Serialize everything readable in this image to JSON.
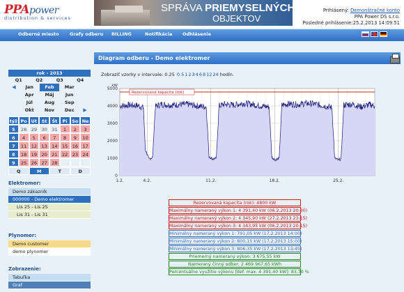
{
  "header": {
    "logo_brand": "PPA",
    "logo_suffix": "power",
    "logo_tagline": "distribution & services",
    "banner_line1_a": "SPRÁVA ",
    "banner_line1_b": "PRIEMYSELNÝCH",
    "banner_line2": "OBJEKTOV",
    "user_label": "Prihlásený:",
    "user_name": "Demonštračné konto",
    "company": "PPA Power DS s.r.o.",
    "last_login": "Posledné prihlásenie:25.2.2013 14:09:51"
  },
  "nav": {
    "items": [
      "Odberné miesto",
      "Grafy odberu",
      "BILLING",
      "Notifikácia",
      "Odhlásenie"
    ]
  },
  "calendar": {
    "year_label": "rok - 2013",
    "quarters": [
      "Q1",
      "Q2",
      "Q3",
      "Q4"
    ],
    "months": [
      [
        "Jan",
        "Feb",
        "Mar"
      ],
      [
        "Apr",
        "Máj",
        "Jun"
      ],
      [
        "Júl",
        "Aug",
        "Sep"
      ],
      [
        "Okt",
        "Nov",
        "Dec"
      ]
    ],
    "selected_month": "Feb",
    "day_headers": [
      "týž",
      "Po",
      "Ut",
      "St",
      "Št",
      "Pi",
      "So",
      "Ne"
    ],
    "weeks": [
      {
        "wk": "5",
        "days": [
          "28",
          "29",
          "30",
          "31",
          "1",
          "2",
          "3"
        ],
        "in": [
          false,
          false,
          false,
          false,
          true,
          true,
          true
        ]
      },
      {
        "wk": "6",
        "days": [
          "4",
          "5",
          "6",
          "7",
          "8",
          "9",
          "10"
        ],
        "in": [
          true,
          true,
          true,
          true,
          true,
          true,
          true
        ]
      },
      {
        "wk": "7",
        "days": [
          "11",
          "12",
          "13",
          "14",
          "15",
          "16",
          "17"
        ],
        "in": [
          true,
          true,
          true,
          true,
          true,
          true,
          true
        ]
      },
      {
        "wk": "8",
        "days": [
          "18",
          "19",
          "20",
          "21",
          "22",
          "23",
          "24"
        ],
        "in": [
          true,
          true,
          true,
          true,
          true,
          true,
          true
        ]
      },
      {
        "wk": "9",
        "days": [
          "25",
          "26",
          "27",
          "28",
          "",
          "",
          ""
        ],
        "in": [
          true,
          true,
          true,
          true,
          false,
          false,
          false
        ]
      }
    ],
    "view_tabs": [
      "Q",
      "M",
      "T",
      "D"
    ],
    "selected_view": "M"
  },
  "elektromer": {
    "title": "Elektromer:",
    "items": [
      "Demo zákazník",
      "000000 - Demo elektromer",
      "Lis 25 - Lis 25",
      "Lis 31 - Lis 31"
    ]
  },
  "plynomer": {
    "title": "Plynomer:",
    "items": [
      "Demo customer",
      "demo plynomer"
    ]
  },
  "zobrazenie": {
    "title": "Zobrazenie:",
    "items": [
      "Tabuľka",
      "Graf"
    ]
  },
  "main": {
    "title": "Diagram odberu - Demo elektromer",
    "interval_label": "Zobraziť vzorky v intervale: 0.25",
    "interval_links": [
      "0.5",
      "1",
      "2",
      "3",
      "4",
      "6",
      "8",
      "12",
      "24"
    ],
    "interval_unit": "hodín."
  },
  "chart_data": {
    "type": "area",
    "ylabel": "kW",
    "ylim": [
      0,
      5000
    ],
    "yticks": [
      0,
      1000,
      2000,
      3000,
      4000,
      5000
    ],
    "xtick_labels": [
      "1.2.",
      "4.2.",
      "11.2.",
      "18.2.",
      "25.2."
    ],
    "xtick_days": [
      1,
      4,
      11,
      18,
      25
    ],
    "xlim_days": [
      1,
      29
    ],
    "reference_line": {
      "label": "Rezervovaná kapacita (rok)",
      "value": 4800
    },
    "series_color": "#1a1a7a",
    "fill_color": "#d6d6f6",
    "profile_points": [
      [
        1.0,
        4000
      ],
      [
        2.0,
        4050
      ],
      [
        3.0,
        4020
      ],
      [
        3.6,
        3900
      ],
      [
        3.8,
        1500
      ],
      [
        4.2,
        950
      ],
      [
        4.6,
        1050
      ],
      [
        4.9,
        3950
      ],
      [
        5.5,
        4100
      ],
      [
        6.5,
        4050
      ],
      [
        7.5,
        4080
      ],
      [
        8.5,
        4100
      ],
      [
        9.5,
        4000
      ],
      [
        10.5,
        3950
      ],
      [
        10.8,
        1100
      ],
      [
        11.2,
        950
      ],
      [
        11.6,
        1000
      ],
      [
        11.9,
        4000
      ],
      [
        12.5,
        4100
      ],
      [
        13.5,
        4050
      ],
      [
        14.5,
        4150
      ],
      [
        15.5,
        4100
      ],
      [
        16.5,
        4000
      ],
      [
        17.4,
        3950
      ],
      [
        17.7,
        1050
      ],
      [
        18.1,
        900
      ],
      [
        18.5,
        1000
      ],
      [
        18.8,
        4050
      ],
      [
        19.5,
        4120
      ],
      [
        20.5,
        4080
      ],
      [
        21.5,
        4150
      ],
      [
        22.5,
        4100
      ],
      [
        23.5,
        4000
      ],
      [
        24.3,
        3900
      ],
      [
        24.6,
        1000
      ],
      [
        25.0,
        900
      ],
      [
        25.3,
        950
      ],
      [
        25.6,
        4050
      ],
      [
        26.5,
        4100
      ],
      [
        27.5,
        3950
      ],
      [
        28.5,
        4080
      ],
      [
        29.0,
        4000
      ]
    ]
  },
  "stats": [
    {
      "text": "Rezervovaná kapacita (rok): 4800 kW",
      "color": "r"
    },
    {
      "text": "Maximálny nameraný výkon 1: 4 391,40 kW    (06.2.2013 20:30)",
      "color": "r"
    },
    {
      "text": "Maximálny nameraný výkon 2: 4 345,90 kW    (27.2.2013 23:15)",
      "color": "r"
    },
    {
      "text": "Maximálny nameraný výkon 3: 4 343,95 kW    (06.2.2013 20:15)",
      "color": "r"
    },
    {
      "text": "Minimálny nameraný výkon 1: 791,05 kW    (17.2.2013 14:00)",
      "color": "bl"
    },
    {
      "text": "Minimálny nameraný výkon 2: 800,15 kW    (17.2.2013 15:00)",
      "color": "bl"
    },
    {
      "text": "Minimálny nameraný výkon 3: 806,35 kW    (17.2.2013 13:45)",
      "color": "bl"
    },
    {
      "text": "Priemerný nameraný výkon: 3 675,55 kW",
      "color": "gr"
    },
    {
      "text": "Nameraný činný odber: 2 469 967,65 kWh",
      "color": "gr"
    },
    {
      "text": "Percentuálne využitie výkonu [def. max. 4 391,40 kW]: 83,70 %",
      "color": "gr"
    }
  ],
  "colors": {
    "accent": "#2e6fbe",
    "nav_gradient_top": "#5d9be0",
    "nav_gradient_bottom": "#2f6fc6",
    "brand_red": "#d3232a",
    "day_active": "#f3a7a9"
  }
}
